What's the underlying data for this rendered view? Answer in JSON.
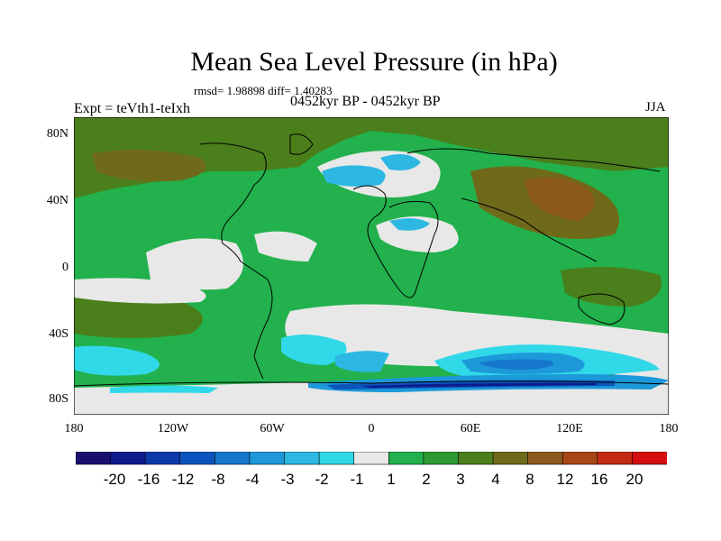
{
  "title": "Mean Sea Level Pressure (in hPa)",
  "stats": "rmsd= 1.98898 diff= 1.40283",
  "experiment": "Expt = teVth1-teIxh",
  "period": "0452kyr BP - 0452kyr BP",
  "season": "JJA",
  "y_ticks": [
    "80N",
    "40N",
    "0",
    "40S",
    "80S"
  ],
  "x_ticks": [
    "180",
    "120W",
    "60W",
    "0",
    "60E",
    "120E",
    "180"
  ],
  "colorbar": {
    "labels": [
      "-20",
      "-16",
      "-12",
      "-8",
      "-4",
      "-3",
      "-2",
      "-1",
      "1",
      "2",
      "3",
      "4",
      "8",
      "12",
      "16",
      "20"
    ],
    "colors": [
      "#1a0f6e",
      "#0d1b8c",
      "#0b3aa8",
      "#0a55bd",
      "#1477cc",
      "#1d99d9",
      "#2cb8e2",
      "#30d8e8",
      "#e8e8e8",
      "#22b14c",
      "#2e9a34",
      "#4a7f1c",
      "#6f6a1a",
      "#8b5a1c",
      "#a84716",
      "#c42a12",
      "#d50f0f"
    ]
  }
}
